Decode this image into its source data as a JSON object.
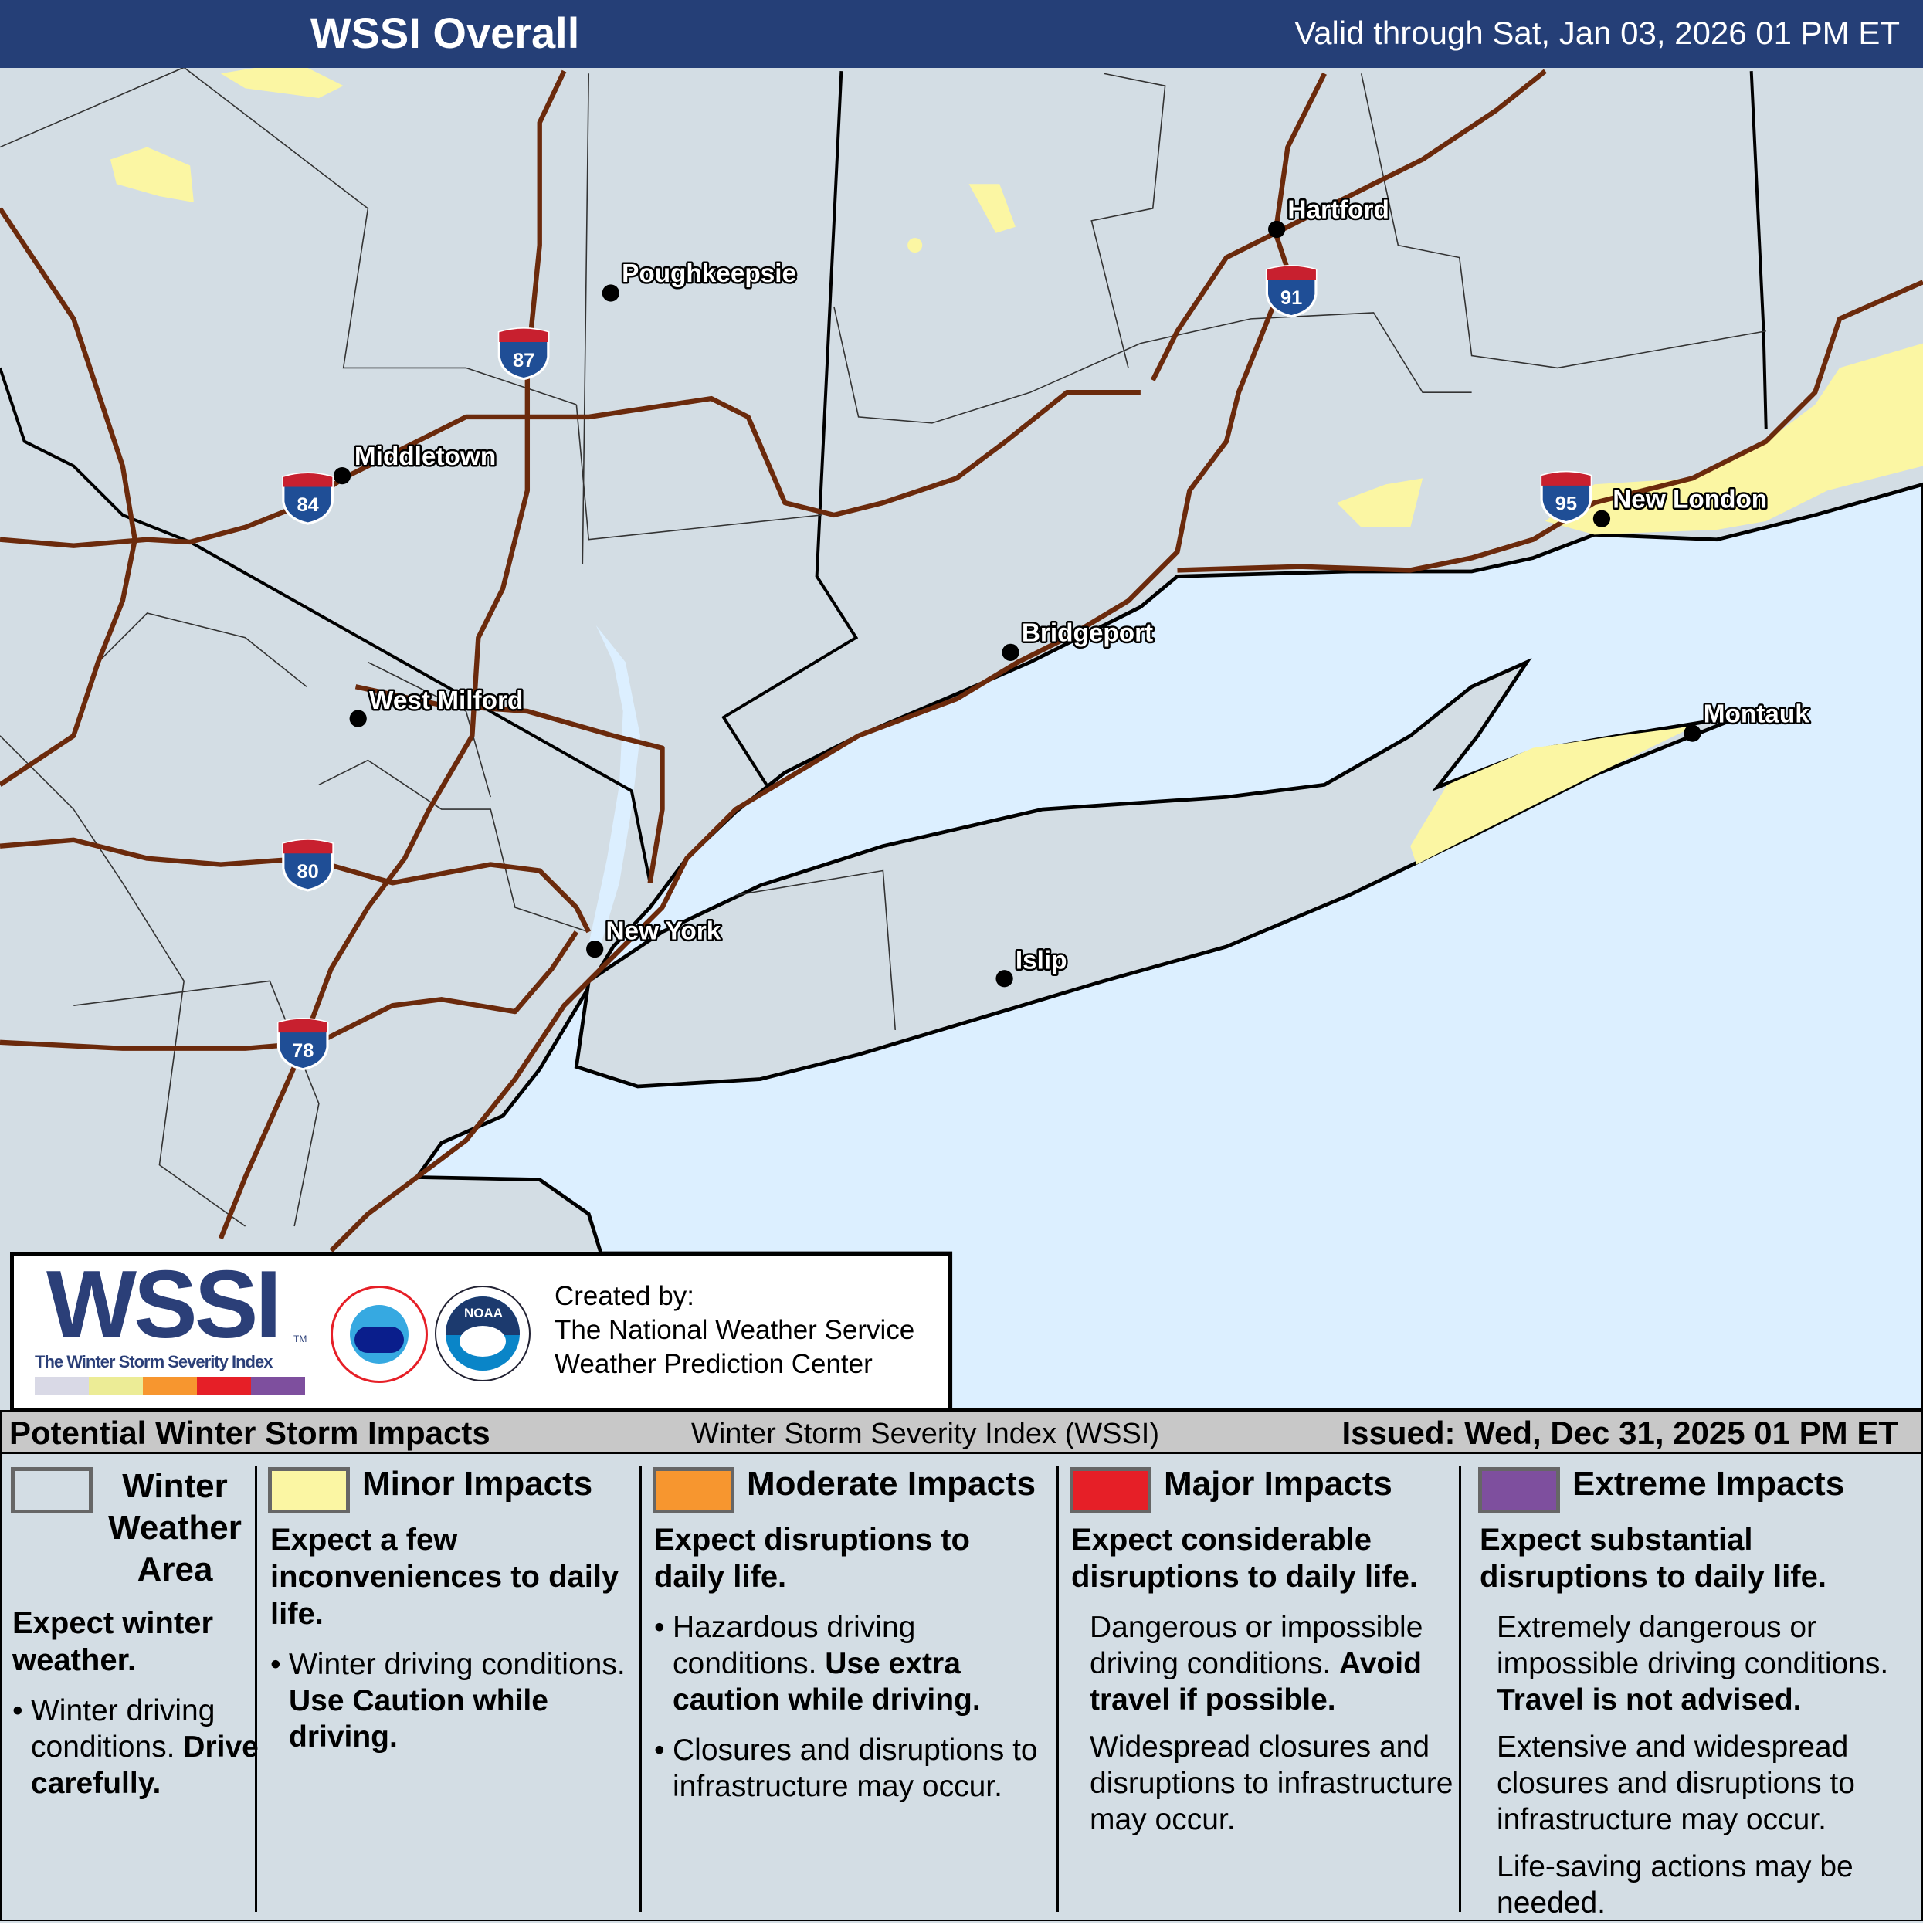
{
  "header": {
    "title": "WSSI Overall",
    "valid": "Valid through Sat, Jan 03, 2026 01 PM ET"
  },
  "colors": {
    "header_bg": "#253f77",
    "land": "#d3dde4",
    "water": "#dcefff",
    "minor": "#fbf6a3",
    "moderate": "#f7962f",
    "major": "#e61f27",
    "extreme": "#7e4f9e",
    "roads": "#6b2a0c"
  },
  "map": {
    "cities": [
      {
        "name": "Poughkeepsie"
      },
      {
        "name": "Hartford"
      },
      {
        "name": "Middletown"
      },
      {
        "name": "New London"
      },
      {
        "name": "Bridgeport"
      },
      {
        "name": "West Milford"
      },
      {
        "name": "New York"
      },
      {
        "name": "Islip"
      },
      {
        "name": "Montauk"
      }
    ],
    "interstates": [
      "87",
      "91",
      "84",
      "95",
      "80",
      "78"
    ]
  },
  "logo": {
    "wordmark": "WSSI",
    "tm": "TM",
    "tagline": "The Winter Storm Severity Index",
    "nws_seal": "NATIONAL WEATHER SERVICE",
    "noaa_seal": "NOAA",
    "created_by": "Created by:",
    "org1": "The National Weather Service",
    "org2": "Weather Prediction Center"
  },
  "legend_header": {
    "left": "Potential Winter Storm Impacts",
    "center": "Winter Storm Severity Index (WSSI)",
    "right": "Issued: Wed, Dec 31, 2025 01 PM ET"
  },
  "legend": [
    {
      "title": "Winter Weather Area",
      "subtitle": "Expect winter weather.",
      "b1": "Winter driving conditions.",
      "b1_bold": "Drive carefully."
    },
    {
      "title": "Minor Impacts",
      "subtitle": "Expect a few inconveniences to daily life.",
      "b1": "Winter driving conditions.",
      "b1_bold": "Use Caution while driving."
    },
    {
      "title": "Moderate Impacts",
      "subtitle": "Expect disruptions to daily life.",
      "b1": "Hazardous driving conditions.",
      "b1_bold": "Use extra caution while driving.",
      "b2": "Closures and disruptions to infrastructure may occur."
    },
    {
      "title": "Major Impacts",
      "subtitle": "Expect considerable disruptions to daily life.",
      "b1": "Dangerous or impossible driving conditions.",
      "b1_bold": "Avoid travel if possible.",
      "b2": "Widespread closures and disruptions to infrastructure may occur."
    },
    {
      "title": "Extreme Impacts",
      "subtitle": "Expect substantial disruptions to daily life.",
      "b1": "Extremely dangerous or impossible driving conditions.",
      "b1_bold": "Travel is not advised.",
      "b2": "Extensive and widespread closures and disruptions to infrastructure may occur.",
      "b3": "Life-saving actions may be needed."
    }
  ]
}
